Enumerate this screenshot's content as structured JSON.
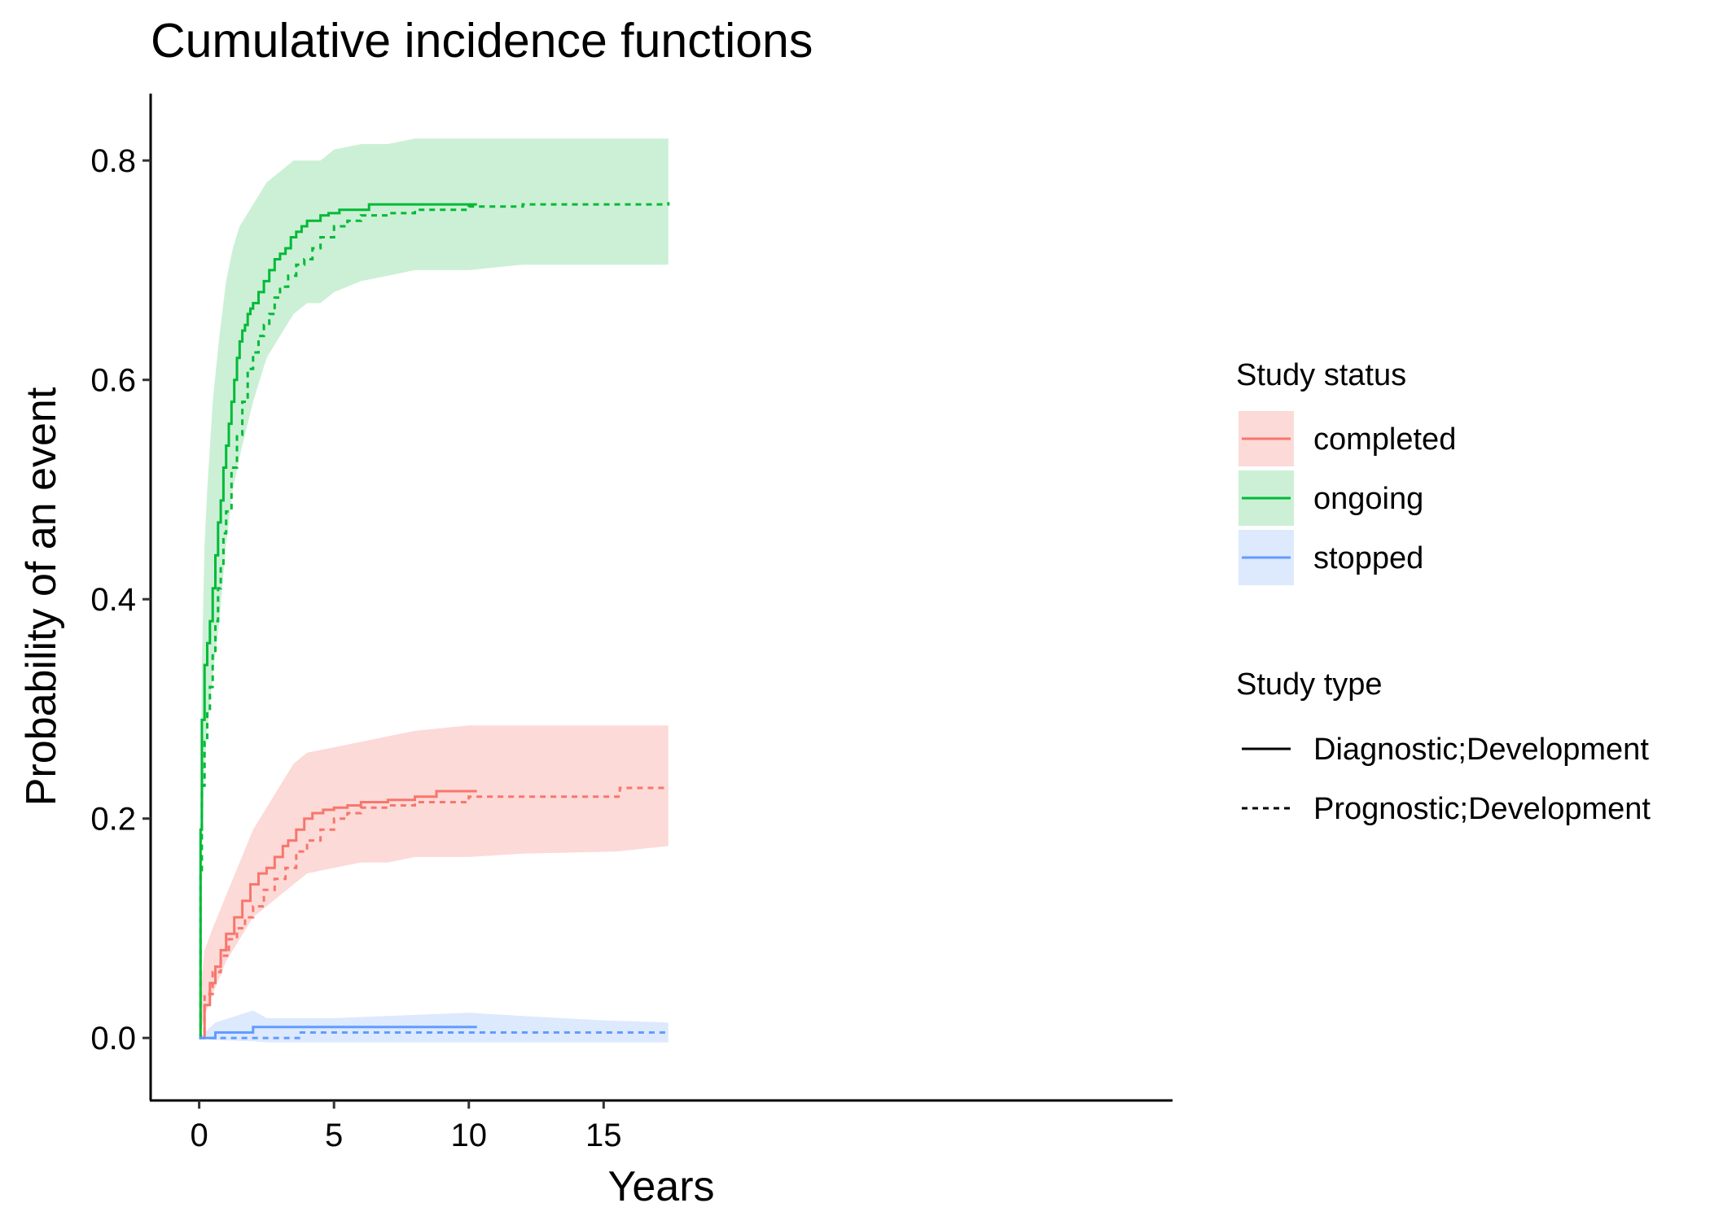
{
  "chart_data": {
    "type": "line",
    "title": "Cumulative incidence functions",
    "xlabel": "Years",
    "ylabel": "Probability of an event",
    "xlim": [
      -1.8,
      36.1
    ],
    "ylim": [
      -0.057,
      0.861
    ],
    "xticks": [
      0,
      5,
      10,
      15
    ],
    "xtick_labels": [
      "0",
      "5",
      "10",
      "15"
    ],
    "yticks": [
      0.0,
      0.2,
      0.4,
      0.6,
      0.8
    ],
    "ytick_labels": [
      "0.0",
      "0.2",
      "0.4",
      "0.6",
      "0.8"
    ],
    "grid": false,
    "legend_placement": "right",
    "legend": {
      "fill_title": "Study status",
      "fill_items": [
        {
          "label": "completed",
          "line_color": "#F8766D",
          "band_color": "#FCDAD7"
        },
        {
          "label": "ongoing",
          "line_color": "#00BA38",
          "band_color": "#CCF0D5"
        },
        {
          "label": "stopped",
          "line_color": "#619CFF",
          "band_color": "#DDE9FD"
        }
      ],
      "linetype_title": "Study type",
      "linetype_items": [
        {
          "label": "Diagnostic;Development",
          "dash": "solid"
        },
        {
          "label": "Prognostic;Development",
          "dash": "dashed"
        }
      ]
    },
    "bands": [
      {
        "group": "ongoing",
        "color": "#CCF0D5",
        "x": [
          0,
          0.1,
          0.2,
          0.3,
          0.5,
          0.75,
          1.0,
          1.25,
          1.5,
          2.0,
          2.5,
          3.0,
          3.5,
          4.0,
          4.5,
          5.0,
          6.0,
          7.0,
          8.0,
          10.0,
          12.0,
          17.4
        ],
        "lower": [
          0,
          0.17,
          0.25,
          0.28,
          0.33,
          0.38,
          0.45,
          0.5,
          0.53,
          0.58,
          0.62,
          0.64,
          0.66,
          0.67,
          0.67,
          0.68,
          0.69,
          0.695,
          0.7,
          0.7,
          0.705,
          0.705
        ],
        "upper": [
          0.07,
          0.34,
          0.45,
          0.5,
          0.58,
          0.64,
          0.69,
          0.72,
          0.74,
          0.76,
          0.78,
          0.79,
          0.8,
          0.8,
          0.8,
          0.81,
          0.815,
          0.815,
          0.82,
          0.82,
          0.82,
          0.82
        ]
      },
      {
        "group": "completed",
        "color": "#FCDAD7",
        "x": [
          0,
          0.2,
          0.5,
          1.0,
          1.5,
          2.0,
          2.5,
          3.0,
          3.5,
          4.0,
          5.0,
          6.0,
          7.0,
          8.0,
          10.0,
          12.0,
          15.5,
          17.4
        ],
        "lower": [
          0,
          0.02,
          0.04,
          0.07,
          0.09,
          0.11,
          0.12,
          0.13,
          0.14,
          0.15,
          0.155,
          0.16,
          0.16,
          0.165,
          0.165,
          0.168,
          0.17,
          0.175
        ],
        "upper": [
          0.03,
          0.08,
          0.1,
          0.13,
          0.16,
          0.19,
          0.21,
          0.23,
          0.25,
          0.26,
          0.265,
          0.27,
          0.275,
          0.28,
          0.285,
          0.285,
          0.285,
          0.285
        ]
      },
      {
        "group": "stopped",
        "color": "#DDE9FD",
        "x": [
          0,
          0.6,
          2.0,
          2.5,
          5.0,
          8.0,
          10.0,
          12.0,
          15.0,
          17.4
        ],
        "lower": [
          0,
          -0.002,
          -0.003,
          -0.004,
          -0.004,
          -0.004,
          -0.004,
          -0.004,
          -0.004,
          -0.004
        ],
        "upper": [
          0,
          0.014,
          0.025,
          0.018,
          0.018,
          0.021,
          0.023,
          0.02,
          0.016,
          0.014
        ]
      }
    ],
    "series": [
      {
        "name": "ongoing",
        "study_type": "Diagnostic;Development",
        "color": "#00BA38",
        "dash": "solid",
        "x": [
          0,
          0.05,
          0.1,
          0.2,
          0.3,
          0.4,
          0.5,
          0.6,
          0.7,
          0.8,
          0.9,
          1.0,
          1.1,
          1.2,
          1.3,
          1.4,
          1.5,
          1.6,
          1.7,
          1.8,
          1.9,
          2.0,
          2.2,
          2.4,
          2.6,
          2.8,
          3.0,
          3.2,
          3.4,
          3.6,
          3.8,
          4.0,
          4.2,
          4.5,
          4.8,
          5.2,
          6.3,
          8.0,
          10.0,
          10.3
        ],
        "y": [
          0,
          0.19,
          0.29,
          0.34,
          0.36,
          0.38,
          0.41,
          0.44,
          0.47,
          0.49,
          0.52,
          0.54,
          0.56,
          0.58,
          0.6,
          0.62,
          0.635,
          0.645,
          0.65,
          0.66,
          0.665,
          0.67,
          0.68,
          0.69,
          0.7,
          0.71,
          0.715,
          0.72,
          0.73,
          0.735,
          0.74,
          0.745,
          0.745,
          0.75,
          0.752,
          0.755,
          0.76,
          0.76,
          0.76,
          0.76
        ]
      },
      {
        "name": "ongoing",
        "study_type": "Prognostic;Development",
        "color": "#00BA38",
        "dash": "dashed",
        "x": [
          0,
          0.05,
          0.1,
          0.2,
          0.3,
          0.4,
          0.5,
          0.6,
          0.7,
          0.8,
          0.9,
          1.0,
          1.2,
          1.4,
          1.6,
          1.8,
          2.0,
          2.2,
          2.4,
          2.6,
          2.8,
          3.0,
          3.3,
          3.6,
          3.9,
          4.2,
          4.5,
          5.0,
          5.5,
          6.0,
          7.0,
          8.0,
          10.0,
          12.0,
          17.4
        ],
        "y": [
          0,
          0.15,
          0.23,
          0.27,
          0.3,
          0.32,
          0.35,
          0.38,
          0.41,
          0.43,
          0.46,
          0.48,
          0.52,
          0.55,
          0.58,
          0.61,
          0.625,
          0.64,
          0.65,
          0.66,
          0.675,
          0.685,
          0.695,
          0.705,
          0.71,
          0.72,
          0.73,
          0.74,
          0.745,
          0.75,
          0.752,
          0.755,
          0.758,
          0.76,
          0.762
        ]
      },
      {
        "name": "completed",
        "study_type": "Diagnostic;Development",
        "color": "#F8766D",
        "dash": "solid",
        "x": [
          0,
          0.2,
          0.4,
          0.6,
          0.8,
          1.0,
          1.3,
          1.6,
          1.9,
          2.2,
          2.5,
          2.8,
          3.1,
          3.3,
          3.6,
          3.9,
          4.2,
          4.6,
          5.0,
          5.5,
          6.0,
          7.0,
          8.0,
          8.8,
          10.3
        ],
        "y": [
          0,
          0.03,
          0.05,
          0.065,
          0.08,
          0.095,
          0.11,
          0.125,
          0.14,
          0.15,
          0.155,
          0.165,
          0.175,
          0.18,
          0.19,
          0.2,
          0.205,
          0.208,
          0.21,
          0.212,
          0.215,
          0.217,
          0.22,
          0.225,
          0.225
        ]
      },
      {
        "name": "completed",
        "study_type": "Prognostic;Development",
        "color": "#F8766D",
        "dash": "dashed",
        "x": [
          0,
          0.2,
          0.5,
          0.8,
          1.1,
          1.4,
          1.7,
          2.0,
          2.4,
          2.8,
          3.2,
          3.6,
          4.0,
          4.5,
          5.0,
          5.5,
          6.0,
          7.0,
          8.0,
          10.0,
          12.0,
          15.6,
          17.4
        ],
        "y": [
          0,
          0.04,
          0.06,
          0.075,
          0.09,
          0.1,
          0.11,
          0.12,
          0.135,
          0.145,
          0.155,
          0.17,
          0.18,
          0.19,
          0.2,
          0.205,
          0.21,
          0.212,
          0.215,
          0.22,
          0.22,
          0.228,
          0.228
        ]
      },
      {
        "name": "stopped",
        "study_type": "Diagnostic;Development",
        "color": "#619CFF",
        "dash": "solid",
        "x": [
          0,
          0.6,
          2.0,
          10.3
        ],
        "y": [
          0,
          0.005,
          0.01,
          0.01
        ]
      },
      {
        "name": "stopped",
        "study_type": "Prognostic;Development",
        "color": "#619CFF",
        "dash": "dashed",
        "x": [
          0,
          0.6,
          3.7,
          17.4
        ],
        "y": [
          0,
          0.0,
          0.005,
          0.005
        ]
      }
    ]
  }
}
